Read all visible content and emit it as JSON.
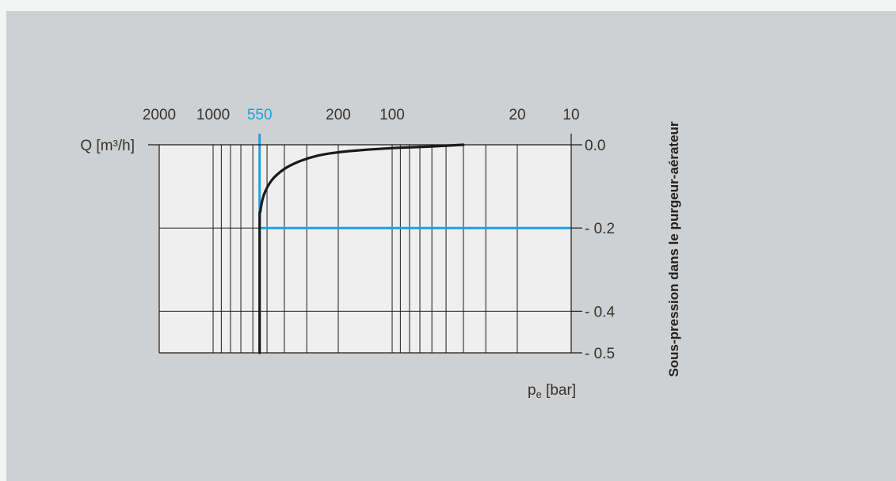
{
  "colors": {
    "background": "#cfd0d1",
    "plot_area": "#efefef",
    "grid": "#1a1a1a",
    "highlight": "#1ba3e0",
    "curve": "#1a1a1a"
  },
  "chart_data": {
    "type": "line",
    "x_scale": "log",
    "x_reversed": true,
    "xlim": [
      2000,
      10
    ],
    "ylim": [
      -0.5,
      0.0
    ],
    "ylabel": "Q [m³/h]",
    "xlabel": "pe [bar]",
    "xlabel_main": "p",
    "xlabel_sub": "e",
    "xlabel_unit": "[bar]",
    "right_axis_label": "Sous-pression dans le purgeur-aérateur",
    "x_ticks": [
      {
        "value": 2000,
        "label": "2000"
      },
      {
        "value": 1000,
        "label": "1000"
      },
      {
        "value": 550,
        "label": "550",
        "highlight": true
      },
      {
        "value": 200,
        "label": "200"
      },
      {
        "value": 100,
        "label": "100"
      },
      {
        "value": 20,
        "label": "20"
      },
      {
        "value": 10,
        "label": "10"
      }
    ],
    "y_ticks": [
      {
        "value": 0.0,
        "label": "0.0"
      },
      {
        "value": -0.2,
        "label": "- 0.2"
      },
      {
        "value": -0.4,
        "label": "- 0.4"
      },
      {
        "value": -0.5,
        "label": "- 0.5"
      }
    ],
    "x_gridlines": [
      1000,
      900,
      800,
      700,
      600,
      500,
      400,
      300,
      200,
      100,
      90,
      80,
      70,
      60,
      50,
      40,
      30,
      20
    ],
    "y_gridlines": [
      -0.2,
      -0.4
    ],
    "highlight_lines": {
      "x": 550,
      "y": -0.2
    },
    "series": [
      {
        "x": [
          550,
          550,
          545,
          520,
          470,
          400,
          330,
          260,
          200,
          160,
          120,
          90,
          60,
          40
        ],
        "y": [
          -0.5,
          -0.2,
          -0.16,
          -0.12,
          -0.085,
          -0.058,
          -0.04,
          -0.026,
          -0.018,
          -0.014,
          -0.01,
          -0.007,
          -0.004,
          0.0
        ]
      }
    ]
  }
}
